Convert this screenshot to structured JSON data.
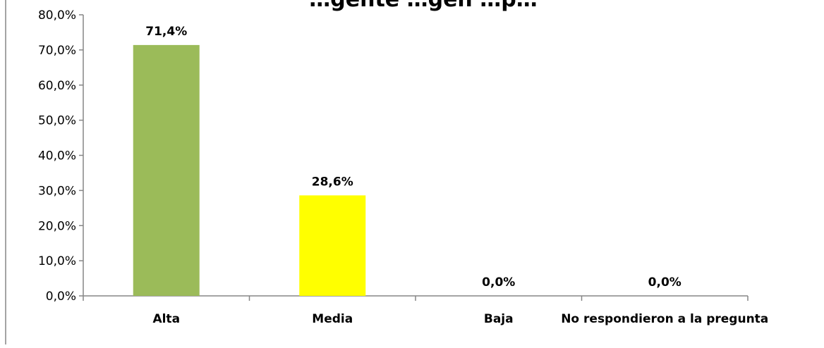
{
  "chart_data": {
    "type": "bar",
    "title": "…gente  …gen  …p…",
    "xlabel": "",
    "ylabel": "",
    "categories": [
      "Alta",
      "Media",
      "Baja",
      "No respondieron a la pregunta"
    ],
    "values": [
      71.4,
      28.6,
      0.0,
      0.0
    ],
    "value_labels": [
      "71,4%",
      "28,6%",
      "0,0%",
      "0,0%"
    ],
    "bar_colors": [
      "#9BBB59",
      "#FFFF00",
      "#9BBB59",
      "#9BBB59"
    ],
    "ylim": [
      0,
      80
    ],
    "yticks": [
      0,
      10,
      20,
      30,
      40,
      50,
      60,
      70,
      80
    ],
    "ytick_labels": [
      "0,0%",
      "10,0%",
      "20,0%",
      "30,0%",
      "40,0%",
      "50,0%",
      "60,0%",
      "70,0%",
      "80,0%"
    ],
    "grid": false,
    "legend": "none"
  }
}
